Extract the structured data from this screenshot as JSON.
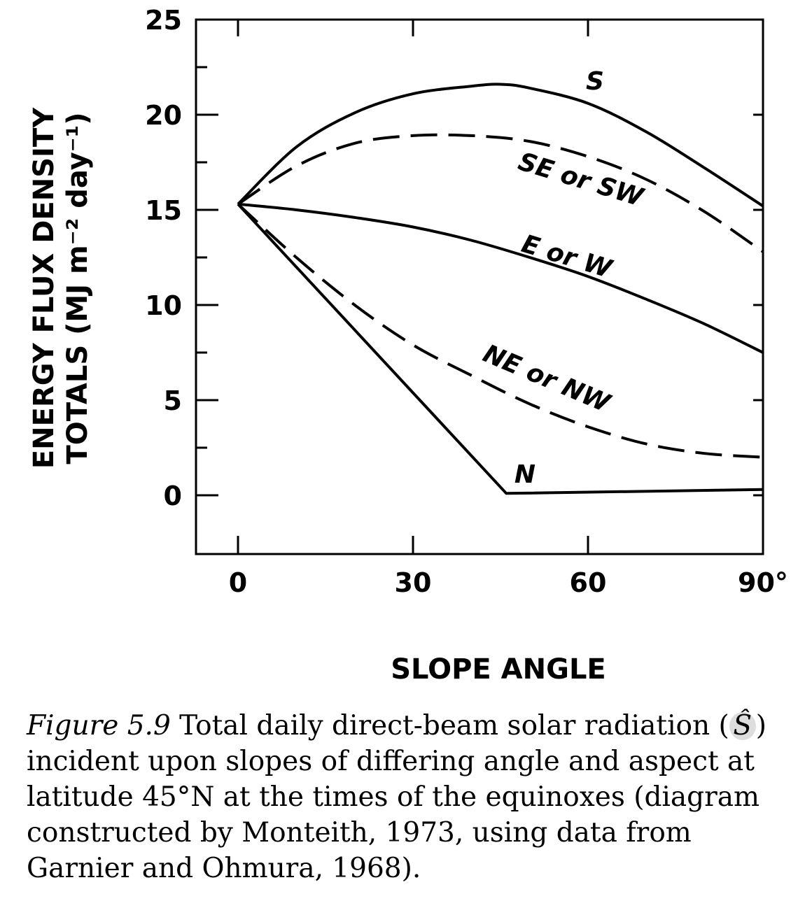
{
  "chart_data": {
    "type": "line",
    "xlabel": "SLOPE ANGLE",
    "ylabel_line1": "ENERGY FLUX DENSITY",
    "ylabel_line2": "TOTALS (MJ m⁻² day⁻¹)",
    "xlim": [
      -5,
      90
    ],
    "ylim": [
      -3,
      25
    ],
    "x_ticks": [
      0,
      30,
      60,
      90
    ],
    "x_tick_labels": [
      "0",
      "30",
      "60",
      "90°"
    ],
    "y_ticks": [
      0,
      5,
      10,
      15,
      20,
      25
    ],
    "y_tick_labels": [
      "0",
      "5",
      "10",
      "15",
      "20",
      "25"
    ],
    "grid": false,
    "legend": "none",
    "series": [
      {
        "name": "S",
        "style": "solid",
        "x": [
          0,
          10,
          20,
          30,
          40,
          45,
          50,
          60,
          70,
          80,
          90
        ],
        "y": [
          15.3,
          18.3,
          20.1,
          21.1,
          21.5,
          21.6,
          21.4,
          20.6,
          19.1,
          17.2,
          15.2
        ]
      },
      {
        "name": "SE or SW",
        "style": "dashed",
        "x": [
          0,
          10,
          20,
          30,
          40,
          50,
          60,
          70,
          80,
          90
        ],
        "y": [
          15.3,
          17.3,
          18.5,
          18.9,
          18.9,
          18.6,
          17.8,
          16.6,
          14.9,
          12.8
        ]
      },
      {
        "name": "E or W",
        "style": "solid",
        "x": [
          0,
          10,
          20,
          30,
          40,
          50,
          60,
          70,
          80,
          90
        ],
        "y": [
          15.3,
          15.0,
          14.6,
          14.1,
          13.4,
          12.5,
          11.5,
          10.3,
          9.0,
          7.5
        ]
      },
      {
        "name": "NE or NW",
        "style": "dashed",
        "x": [
          0,
          10,
          20,
          30,
          40,
          50,
          60,
          70,
          80,
          90
        ],
        "y": [
          15.3,
          12.5,
          10.0,
          7.9,
          6.3,
          4.8,
          3.6,
          2.7,
          2.2,
          2.0
        ]
      },
      {
        "name": "N",
        "style": "solid",
        "x": [
          0,
          46,
          90
        ],
        "y": [
          15.3,
          0.1,
          0.3
        ]
      }
    ],
    "curve_labels": [
      {
        "text": "S"
      },
      {
        "text": "SE or SW"
      },
      {
        "text": "E or W"
      },
      {
        "text": "NE or NW"
      },
      {
        "text": "N"
      }
    ]
  },
  "caption": {
    "figure_number": "Figure 5.9",
    "text_before_symbol": "Total daily direct-beam solar radiation (",
    "symbol": "Ŝ",
    "text_after_symbol": ") incident upon slopes of differing angle and aspect at latitude 45°N at the times of the equinoxes (diagram constructed by Monteith, 1973, using data from Garnier and Ohmura, 1968)."
  }
}
